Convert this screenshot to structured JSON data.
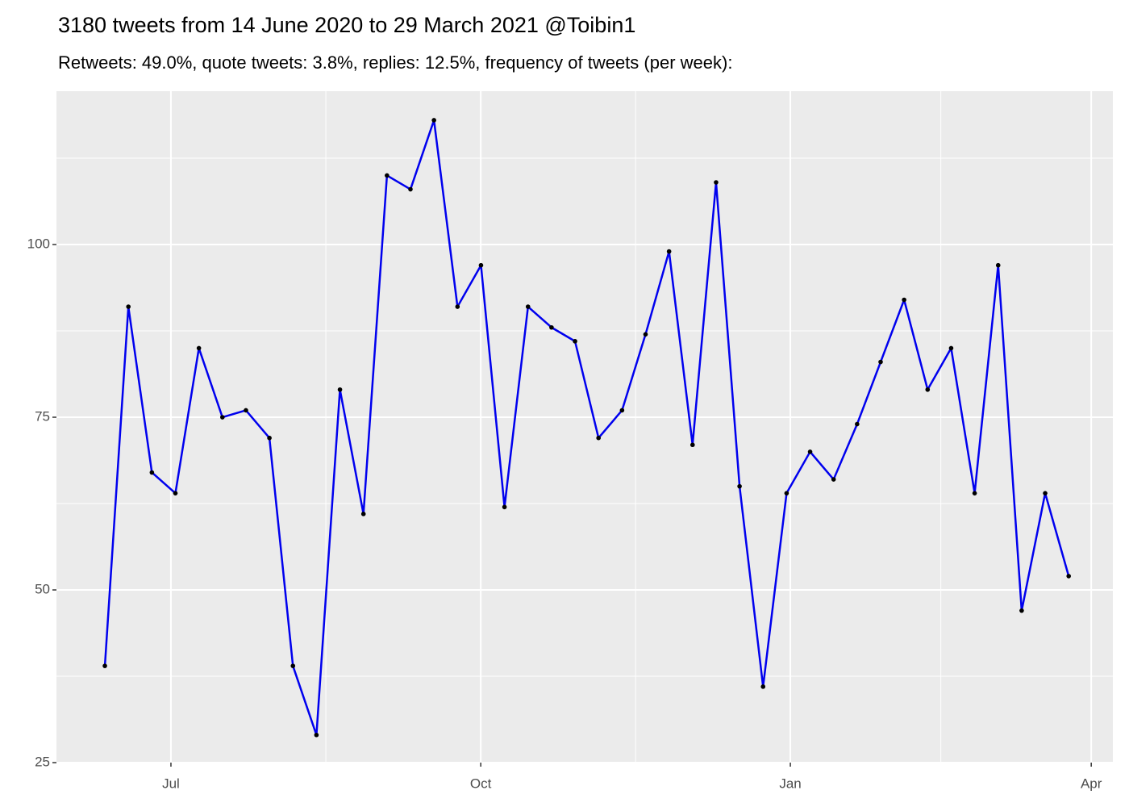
{
  "chart_data": {
    "type": "line",
    "title": "3180 tweets from 14 June 2020 to 29 March 2021 @Toibin1",
    "subtitle": "Retweets: 49.0%, quote tweets: 3.8%, replies: 12.5%, frequency of tweets (per week):",
    "categories": [
      null,
      null,
      null,
      null,
      null,
      null,
      null,
      null,
      null,
      null,
      null,
      null,
      null,
      null,
      null,
      null,
      null,
      null,
      null,
      null,
      null,
      null,
      null,
      null,
      null,
      null,
      null,
      null,
      null,
      null,
      null,
      null,
      null,
      null,
      null,
      null,
      null,
      null,
      null,
      null,
      null,
      null
    ],
    "values": [
      39,
      91,
      67,
      64,
      85,
      75,
      76,
      72,
      39,
      29,
      79,
      61,
      110,
      108,
      118,
      91,
      97,
      62,
      91,
      88,
      86,
      72,
      76,
      87,
      99,
      71,
      109,
      65,
      36,
      64,
      70,
      66,
      74,
      83,
      92,
      79,
      85,
      64,
      97,
      47,
      64,
      52
    ],
    "color": "#0000ee",
    "point_color": "#000000",
    "xlim": [
      -2.06,
      42.88
    ],
    "xticks": [
      {
        "value": 2.81,
        "label": "Jul"
      },
      {
        "value": 15.99,
        "label": "Oct"
      },
      {
        "value": 29.16,
        "label": "Jan"
      },
      {
        "value": 41.96,
        "label": "Apr"
      }
    ],
    "ylim": [
      25,
      122.2
    ],
    "yticks": [
      25,
      50,
      75,
      100
    ],
    "grid": true
  }
}
